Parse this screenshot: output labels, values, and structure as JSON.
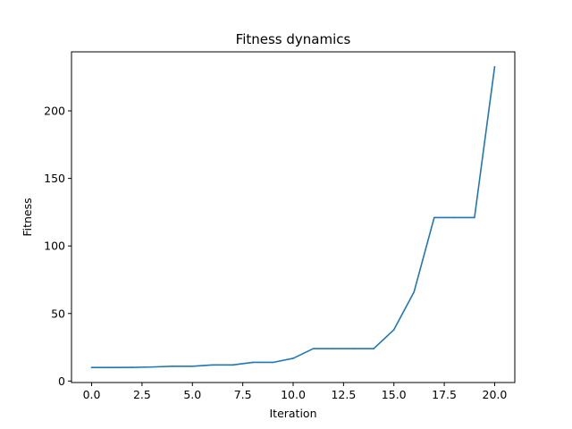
{
  "chart_data": {
    "type": "line",
    "title": "Fitness dynamics",
    "xlabel": "Iteration",
    "ylabel": "Fitness",
    "xlim": [
      -1,
      21
    ],
    "ylim": [
      -1.1,
      243.7
    ],
    "xticks": [
      0.0,
      2.5,
      5.0,
      7.5,
      10.0,
      12.5,
      15.0,
      17.5,
      20.0
    ],
    "xtick_labels": [
      "0.0",
      "2.5",
      "5.0",
      "7.5",
      "10.0",
      "12.5",
      "15.0",
      "17.5",
      "20.0"
    ],
    "yticks": [
      0,
      50,
      100,
      150,
      200
    ],
    "ytick_labels": [
      "0",
      "50",
      "100",
      "150",
      "200"
    ],
    "grid": false,
    "series": [
      {
        "color": "#1f77b4",
        "x": [
          0,
          1,
          2,
          3,
          4,
          5,
          6,
          7,
          8,
          9,
          10,
          11,
          12,
          13,
          14,
          15,
          16,
          17,
          18,
          19,
          20
        ],
        "y": [
          10.0,
          10.0,
          10.1,
          10.4,
          10.9,
          10.9,
          11.9,
          11.9,
          13.8,
          13.8,
          16.8,
          24.0,
          24.0,
          24.0,
          24.0,
          38.0,
          66.0,
          121.0,
          121.0,
          121.0,
          232.6
        ]
      }
    ]
  }
}
